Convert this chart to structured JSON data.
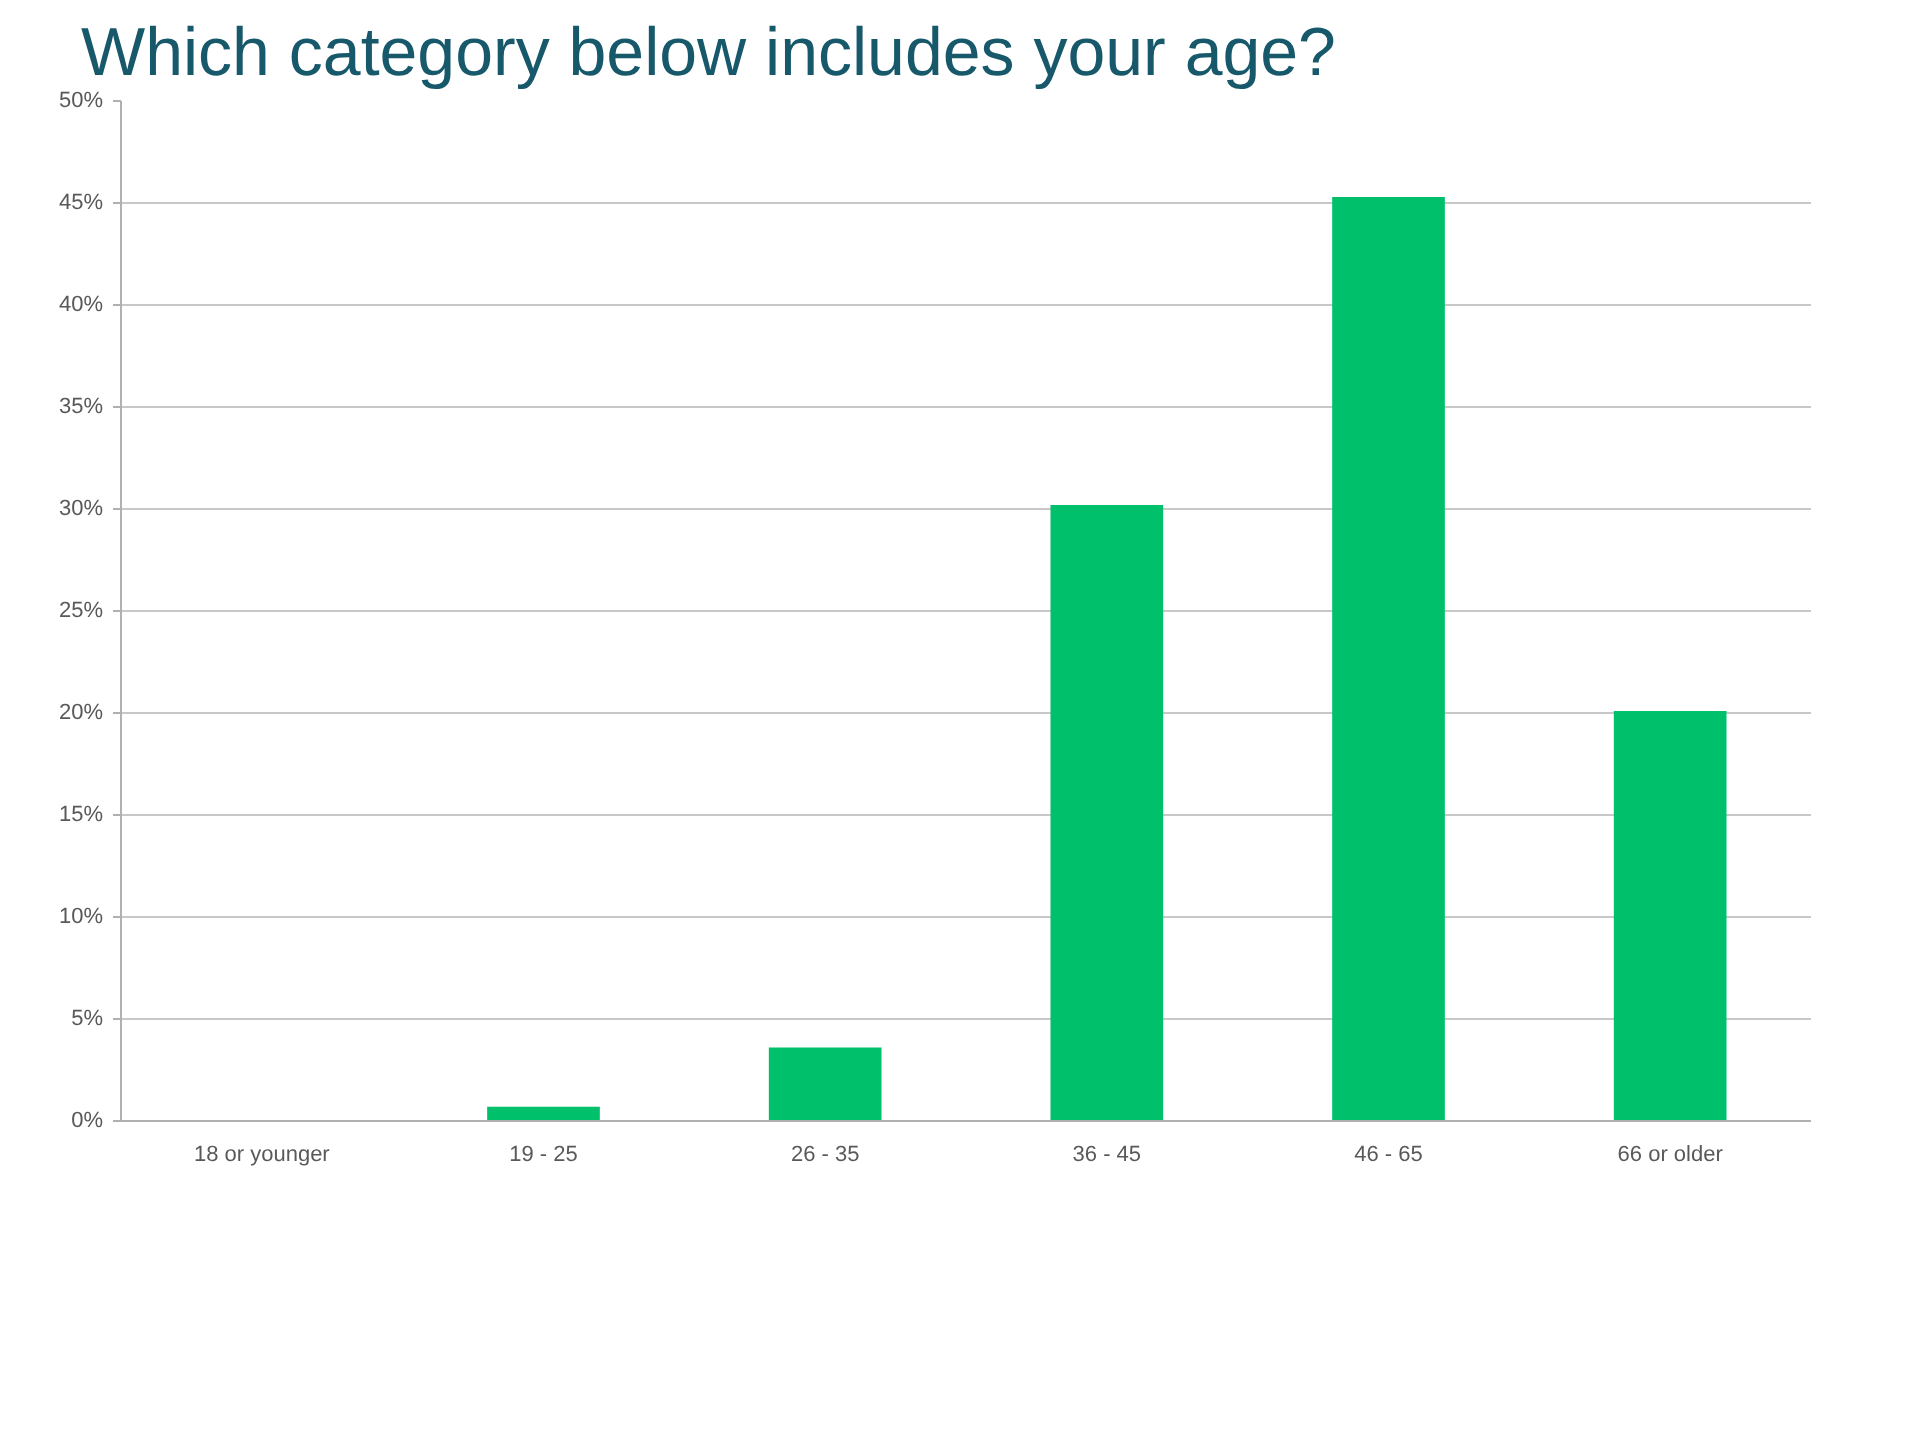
{
  "chart_data": {
    "type": "bar",
    "title": "Which category below includes your age?",
    "categories": [
      "18 or younger",
      "19 - 25",
      "26 - 35",
      "36 - 45",
      "46 - 65",
      "66 or older"
    ],
    "values": [
      0,
      0.7,
      3.6,
      30.2,
      45.3,
      20.1
    ],
    "color": "#00c06b",
    "ylim": [
      0,
      50
    ],
    "yticks": [
      {
        "value": 0,
        "label": "0%"
      },
      {
        "value": 5,
        "label": "5%"
      },
      {
        "value": 10,
        "label": "10%"
      },
      {
        "value": 15,
        "label": "15%"
      },
      {
        "value": 20,
        "label": "20%"
      },
      {
        "value": 25,
        "label": "25%"
      },
      {
        "value": 30,
        "label": "30%"
      },
      {
        "value": 35,
        "label": "35%"
      },
      {
        "value": 40,
        "label": "40%"
      },
      {
        "value": 45,
        "label": "45%"
      },
      {
        "value": 50,
        "label": "50%"
      }
    ],
    "grid": "y"
  }
}
